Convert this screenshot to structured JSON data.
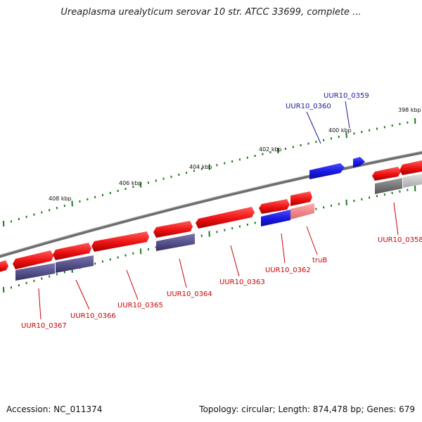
{
  "title": "Ureaplasma urealyticum serovar 10 str. ATCC 33699, complete ...",
  "footer": {
    "accession": "Accession: NC_011374",
    "summary": "Topology: circular; Length: 874,478 bp; Genes: 679"
  },
  "colors": {
    "forward_gene": "#ee1111",
    "reverse_gene": "#55508a",
    "highlight_gene": "#1818e0",
    "label_red": "#cc0000",
    "label_blue": "#1a1aa0",
    "tick_green": "#1a7a1a",
    "backbone": "#777777"
  },
  "scale_labels": [
    "398 kbp",
    "400 kbp",
    "402 kbp",
    "404 kbp",
    "406 kbp",
    "408 kbp"
  ],
  "gene_labels": [
    {
      "id": "UUR10_0359",
      "color": "blue"
    },
    {
      "id": "UUR10_0360",
      "color": "blue"
    },
    {
      "id": "UUR10_0358",
      "color": "red"
    },
    {
      "id": "truB",
      "color": "red"
    },
    {
      "id": "UUR10_0362",
      "color": "red"
    },
    {
      "id": "UUR10_0363",
      "color": "red"
    },
    {
      "id": "UUR10_0364",
      "color": "red"
    },
    {
      "id": "UUR10_0365",
      "color": "red"
    },
    {
      "id": "UUR10_0366",
      "color": "red"
    },
    {
      "id": "UUR10_0367",
      "color": "red"
    }
  ]
}
